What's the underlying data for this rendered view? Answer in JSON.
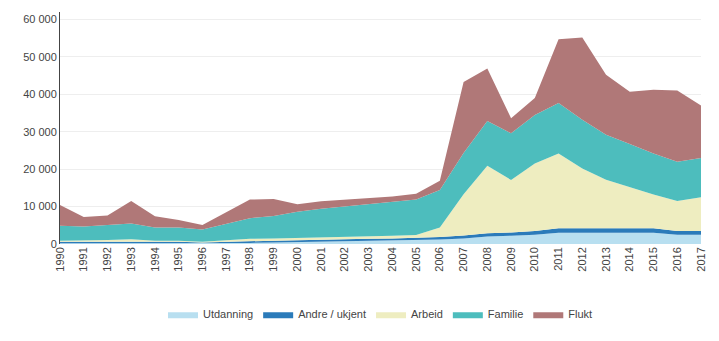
{
  "chart_data": {
    "type": "area",
    "stacked": true,
    "x": [
      1990,
      1991,
      1992,
      1993,
      1994,
      1995,
      1996,
      1997,
      1998,
      1999,
      2000,
      2001,
      2002,
      2003,
      2004,
      2005,
      2006,
      2007,
      2008,
      2009,
      2010,
      2011,
      2012,
      2013,
      2014,
      2015,
      2016,
      2017
    ],
    "series": [
      {
        "name": "Utdanning",
        "color": "#b8dff0",
        "values": [
          200,
          200,
          200,
          200,
          200,
          200,
          100,
          200,
          300,
          400,
          500,
          600,
          700,
          800,
          900,
          1000,
          1200,
          1500,
          2000,
          2200,
          2500,
          3000,
          3000,
          3000,
          3000,
          3000,
          2500,
          2500
        ]
      },
      {
        "name": "Andre / ukjent",
        "color": "#2b7bba",
        "values": [
          400,
          400,
          500,
          600,
          400,
          400,
          300,
          400,
          500,
          500,
          500,
          600,
          600,
          600,
          600,
          600,
          700,
          800,
          900,
          900,
          1000,
          1200,
          1200,
          1200,
          1200,
          1200,
          1000,
          1000
        ]
      },
      {
        "name": "Arbeid",
        "color": "#eeedc0",
        "values": [
          300,
          300,
          400,
          500,
          300,
          300,
          200,
          400,
          600,
          600,
          600,
          700,
          700,
          700,
          700,
          800,
          2500,
          11000,
          18000,
          14000,
          18000,
          20000,
          16000,
          13000,
          11000,
          9000,
          8000,
          9000
        ]
      },
      {
        "name": "Familie",
        "color": "#4dbdbd",
        "values": [
          4000,
          3800,
          4000,
          4200,
          3500,
          3500,
          3300,
          4500,
          5500,
          6000,
          7000,
          7500,
          8000,
          8500,
          9000,
          9500,
          10000,
          11000,
          12000,
          12500,
          13000,
          13500,
          13000,
          12000,
          11500,
          11000,
          10500,
          10500
        ]
      },
      {
        "name": "Flukt",
        "color": "#b07878",
        "values": [
          5500,
          2500,
          2500,
          6000,
          3000,
          2000,
          1200,
          3000,
          5000,
          4500,
          2000,
          2000,
          1800,
          1600,
          1500,
          1500,
          2500,
          19000,
          14000,
          4000,
          4500,
          17000,
          22000,
          16000,
          14000,
          17000,
          19000,
          14000
        ]
      }
    ],
    "xlim": [
      1990,
      2017
    ],
    "xticks": [
      1990,
      1991,
      1992,
      1993,
      1994,
      1995,
      1996,
      1997,
      1998,
      1999,
      2000,
      2001,
      2002,
      2003,
      2004,
      2005,
      2006,
      2007,
      2008,
      2009,
      2010,
      2011,
      2012,
      2013,
      2014,
      2015,
      2016,
      2017
    ],
    "ylim": [
      0,
      62000
    ],
    "yticks": [
      0,
      {
        "value": 10000,
        "label": "10 000"
      },
      {
        "value": 20000,
        "label": "20 000"
      },
      {
        "value": 30000,
        "label": "30 000"
      },
      {
        "value": 40000,
        "label": "40 000"
      },
      {
        "value": 50000,
        "label": "50 000"
      },
      {
        "value": 60000,
        "label": "60 000"
      }
    ],
    "grid": true,
    "legend": "bottom"
  }
}
